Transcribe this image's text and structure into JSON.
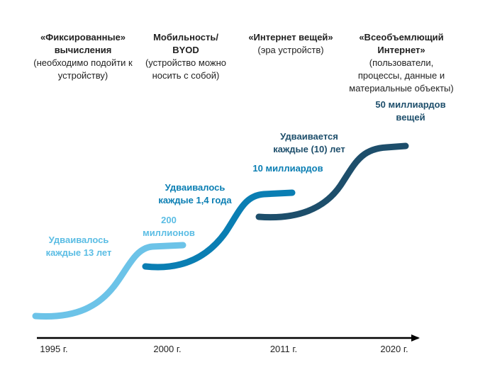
{
  "eras": [
    {
      "title": "«Фиксированные» вычисления",
      "subtitle": "(необходимо подойти к устройству)"
    },
    {
      "title": "Мобильность/ BYOD",
      "subtitle": "(устройство можно носить с собой)"
    },
    {
      "title": "«Интернет вещей»",
      "subtitle": "(эра устройств)"
    },
    {
      "title": "«Всеобъемлющий Интернет»",
      "subtitle": "(пользователи, процессы, данные и материальные объекты)"
    }
  ],
  "growth_labels": [
    {
      "text": "Удваивалось каждые 13 лет",
      "color": "#5bbde4"
    },
    {
      "text": "Удваивалось каждые 1,4 года",
      "color": "#0a7eb3"
    },
    {
      "text": "Удваивается каждые (10) лет",
      "color": "#1d4e6b"
    }
  ],
  "milestones": [
    {
      "text": "200 миллионов",
      "color": "#5bbde4"
    },
    {
      "text": "10 миллиардов",
      "color": "#0a7eb3"
    },
    {
      "text": "50 миллиардов вещей",
      "color": "#1d4e6b"
    }
  ],
  "timeline": {
    "years": [
      "1995 г.",
      "2000 г.",
      "2011 г.",
      "2020 г."
    ],
    "axis_color": "#000000"
  },
  "curves": {
    "colors": [
      "#6cc3e8",
      "#0a7eb3",
      "#1d4e6b"
    ]
  }
}
